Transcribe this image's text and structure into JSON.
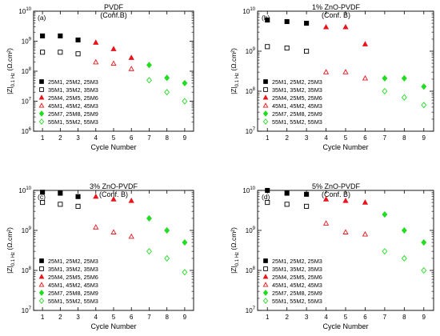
{
  "figure": {
    "shared_xlabel": "Cycle Number",
    "shared_ylabel_main": "|Z|",
    "shared_ylabel_sub": "0.1 Hz",
    "shared_ylabel_unit": "(Ω.cm²)",
    "legend_entries": [
      "25M1, 25M2, 25M3",
      "35M1, 35M2, 35M3",
      "25M4, 25M5, 25M6",
      "45M1, 45M2, 45M3",
      "25M7, 25M8, 25M9",
      "55M1, 55M2, 55M3"
    ],
    "colors": {
      "black": "#000000",
      "red": "#e8141c",
      "green": "#22dd22"
    }
  },
  "chart_data": [
    {
      "type": "scatter",
      "panel_label": "(a)",
      "title": "PVDF",
      "subtitle": "(Conf.B)",
      "xlabel": "Cycle Number",
      "ylabel": "|Z|0.1 Hz (Ω.cm²)",
      "xlim": [
        0.5,
        9.5
      ],
      "ylim_exp": [
        6,
        10
      ],
      "log_y": true,
      "x_ticks": [
        "1",
        "2",
        "3",
        "4",
        "5",
        "6",
        "7",
        "8",
        "9"
      ],
      "y_tick_exps": [
        6,
        7,
        8,
        9,
        10
      ],
      "series": [
        {
          "name": "25M1, 25M2, 25M3",
          "x": [
            1,
            2,
            3
          ],
          "y": [
            1500000000.0,
            1500000000.0,
            1100000000.0
          ]
        },
        {
          "name": "35M1, 35M2, 35M3",
          "x": [
            1,
            2,
            3
          ],
          "y": [
            430000000.0,
            430000000.0,
            380000000.0
          ]
        },
        {
          "name": "25M4, 25M5, 25M6",
          "x": [
            4,
            5,
            6
          ],
          "y": [
            900000000.0,
            550000000.0,
            280000000.0
          ]
        },
        {
          "name": "45M1, 45M2, 45M3",
          "x": [
            4,
            5,
            6
          ],
          "y": [
            200000000.0,
            180000000.0,
            120000000.0
          ]
        },
        {
          "name": "25M7, 25M8, 25M9",
          "x": [
            7,
            8,
            9
          ],
          "y": [
            160000000.0,
            60000000.0,
            40000000.0
          ]
        },
        {
          "name": "55M1, 55M2, 55M3",
          "x": [
            7,
            8,
            9
          ],
          "y": [
            50000000.0,
            20000000.0,
            10000000.0
          ]
        }
      ]
    },
    {
      "type": "scatter",
      "panel_label": "(b)",
      "title": "1% ZnO-PVDF",
      "subtitle": "(Conf. B)",
      "xlabel": "Cycle Number",
      "ylabel": "|Z|0.1 Hz (Ω.cm²)",
      "xlim": [
        0.5,
        9.5
      ],
      "ylim_exp": [
        7,
        10
      ],
      "log_y": true,
      "x_ticks": [
        "1",
        "2",
        "3",
        "4",
        "5",
        "6",
        "7",
        "8",
        "9"
      ],
      "y_tick_exps": [
        7,
        8,
        9,
        10
      ],
      "series": [
        {
          "name": "25M1, 25M2, 25M3",
          "x": [
            1,
            2,
            3
          ],
          "y": [
            6000000000.0,
            5500000000.0,
            5000000000.0
          ]
        },
        {
          "name": "35M1, 35M2, 35M3",
          "x": [
            1,
            2,
            3
          ],
          "y": [
            1300000000.0,
            1200000000.0,
            1000000000.0
          ]
        },
        {
          "name": "25M4, 25M5, 25M6",
          "x": [
            4,
            5,
            6
          ],
          "y": [
            4000000000.0,
            4000000000.0,
            1500000000.0
          ]
        },
        {
          "name": "45M1, 45M2, 45M3",
          "x": [
            4,
            5,
            6
          ],
          "y": [
            300000000.0,
            300000000.0,
            210000000.0
          ]
        },
        {
          "name": "25M7, 25M8, 25M9",
          "x": [
            7,
            8,
            9
          ],
          "y": [
            210000000.0,
            210000000.0,
            130000000.0
          ]
        },
        {
          "name": "55M1, 55M2, 55M3",
          "x": [
            7,
            8,
            9
          ],
          "y": [
            100000000.0,
            70000000.0,
            45000000.0
          ]
        }
      ]
    },
    {
      "type": "scatter",
      "panel_label": "(c)",
      "title": "3% ZnO-PVDF",
      "subtitle": "(Conf. B)",
      "xlabel": "Cycle Number",
      "ylabel": "|Z|0.1 Hz (Ω.cm²)",
      "xlim": [
        0.5,
        9.5
      ],
      "ylim_exp": [
        7,
        10
      ],
      "log_y": true,
      "x_ticks": [
        "1",
        "2",
        "3",
        "4",
        "5",
        "6",
        "7",
        "8",
        "9"
      ],
      "y_tick_exps": [
        7,
        8,
        9,
        10
      ],
      "series": [
        {
          "name": "25M1, 25M2, 25M3",
          "x": [
            1,
            2,
            3
          ],
          "y": [
            9000000000.0,
            8500000000.0,
            7000000000.0
          ]
        },
        {
          "name": "35M1, 35M2, 35M3",
          "x": [
            1,
            2,
            3
          ],
          "y": [
            5000000000.0,
            4500000000.0,
            4000000000.0
          ]
        },
        {
          "name": "25M4, 25M5, 25M6",
          "x": [
            4,
            5,
            6
          ],
          "y": [
            7000000000.0,
            6000000000.0,
            5500000000.0
          ]
        },
        {
          "name": "45M1, 45M2, 45M3",
          "x": [
            4,
            5,
            6
          ],
          "y": [
            1200000000.0,
            900000000.0,
            700000000.0
          ]
        },
        {
          "name": "25M7, 25M8, 25M9",
          "x": [
            7,
            8,
            9
          ],
          "y": [
            2000000000.0,
            1000000000.0,
            500000000.0
          ]
        },
        {
          "name": "55M1, 55M2, 55M3",
          "x": [
            7,
            8,
            9
          ],
          "y": [
            300000000.0,
            200000000.0,
            90000000.0
          ]
        }
      ]
    },
    {
      "type": "scatter",
      "panel_label": "(d)",
      "title": "5% ZnO-PVDF",
      "subtitle": "(Conf. B)",
      "xlabel": "Cycle Number",
      "ylabel": "|Z|0.1 Hz (Ω.cm²)",
      "xlim": [
        0.5,
        9.5
      ],
      "ylim_exp": [
        7,
        10
      ],
      "log_y": true,
      "x_ticks": [
        "1",
        "2",
        "3",
        "4",
        "5",
        "6",
        "7",
        "8",
        "9"
      ],
      "y_tick_exps": [
        7,
        8,
        9,
        10
      ],
      "series": [
        {
          "name": "25M1, 25M2, 25M3",
          "x": [
            1,
            2,
            3
          ],
          "y": [
            10000000000.0,
            8500000000.0,
            8000000000.0
          ]
        },
        {
          "name": "35M1, 35M2, 35M3",
          "x": [
            1,
            2,
            3
          ],
          "y": [
            5000000000.0,
            4500000000.0,
            4000000000.0
          ]
        },
        {
          "name": "25M4, 25M5, 25M6",
          "x": [
            4,
            5,
            6
          ],
          "y": [
            6000000000.0,
            5500000000.0,
            5000000000.0
          ]
        },
        {
          "name": "45M1, 45M2, 45M3",
          "x": [
            4,
            5,
            6
          ],
          "y": [
            1500000000.0,
            900000000.0,
            800000000.0
          ]
        },
        {
          "name": "25M7, 25M8, 25M9",
          "x": [
            7,
            8,
            9
          ],
          "y": [
            2500000000.0,
            1000000000.0,
            500000000.0
          ]
        },
        {
          "name": "55M1, 55M2, 55M3",
          "x": [
            7,
            8,
            9
          ],
          "y": [
            300000000.0,
            200000000.0,
            100000000.0
          ]
        }
      ]
    }
  ]
}
